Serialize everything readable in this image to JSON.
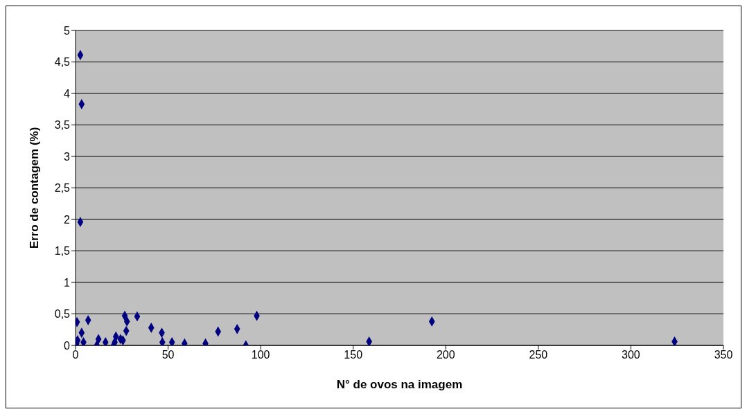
{
  "chart_data": {
    "type": "scatter",
    "xlabel": "N° de ovos na imagem",
    "ylabel": "Erro de contagem (%)",
    "xlim": [
      0,
      350
    ],
    "xticks": [
      0,
      50,
      100,
      150,
      200,
      250,
      300,
      350
    ],
    "ylim": [
      0,
      5
    ],
    "yticks": [
      0,
      {
        "value": 0.5,
        "label": "0,5"
      },
      1,
      {
        "value": 1.5,
        "label": "1,5"
      },
      2,
      {
        "value": 2.5,
        "label": "2,5"
      },
      3,
      {
        "value": 3.5,
        "label": "3,5"
      },
      4,
      {
        "value": 4.5,
        "label": "4,5"
      },
      5
    ],
    "grid": "y",
    "marker": "diamond",
    "series": [
      {
        "color": "#000080",
        "x": [
          2.6,
          3.3,
          2.6,
          0.8,
          6.8,
          3.3,
          1.1,
          4.3,
          0.5,
          11.5,
          12.4,
          16.2,
          20.6,
          21.8,
          21.2,
          24.3,
          25.6,
          26.6,
          27.8,
          27.4,
          33.3,
          40.9,
          46.6,
          46.9,
          52.1,
          58.9,
          70.2,
          77,
          87.3,
          92,
          97.9,
          158.6,
          192.5,
          323.6
        ],
        "values": [
          4.61,
          3.83,
          1.96,
          0.37,
          0.4,
          0.2,
          0.08,
          0.05,
          0.03,
          0,
          0.1,
          0.05,
          0,
          0.14,
          0.05,
          0.1,
          0.08,
          0.47,
          0.38,
          0.23,
          0.46,
          0.28,
          0.2,
          0.05,
          0.05,
          0.03,
          0.03,
          0.22,
          0.26,
          0,
          0.47,
          0.06,
          0.38,
          0.06
        ]
      }
    ]
  }
}
